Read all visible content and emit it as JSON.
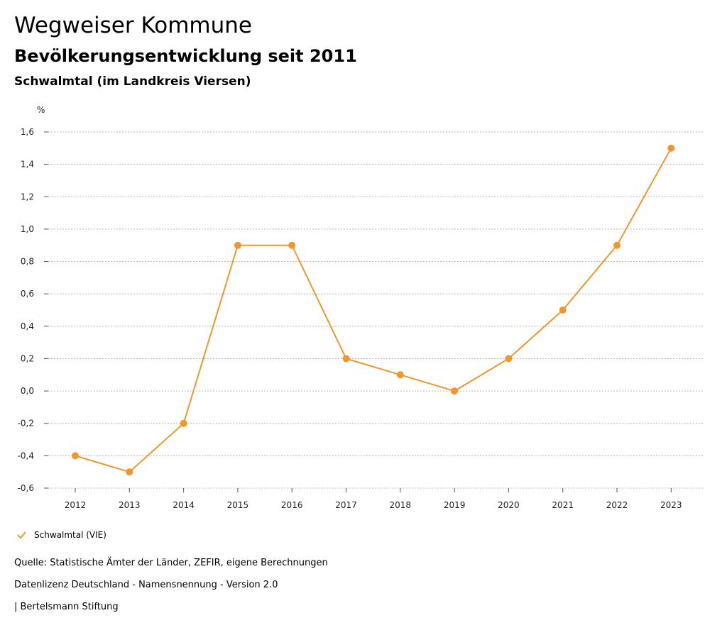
{
  "header": {
    "title": "Wegweiser Kommune",
    "subtitle": "Bevölkerungsentwicklung seit 2011",
    "region": "Schwalmtal (im Landkreis Viersen)"
  },
  "colors": {
    "accent": "#f0972f",
    "grid": "#b9b9b9",
    "axis": "#555555"
  },
  "chart_data": {
    "type": "line",
    "title": "Bevölkerungsentwicklung seit 2011",
    "ylabel": "%",
    "xlabel": "",
    "x": [
      "2012",
      "2013",
      "2014",
      "2015",
      "2016",
      "2017",
      "2018",
      "2019",
      "2020",
      "2021",
      "2022",
      "2023"
    ],
    "series": [
      {
        "name": "Schwalmtal (VIE)",
        "values": [
          -0.4,
          -0.5,
          -0.2,
          0.9,
          0.9,
          0.2,
          0.1,
          0.0,
          0.2,
          0.5,
          0.9,
          1.5
        ]
      }
    ],
    "yticks": [
      1.6,
      1.4,
      1.2,
      1.0,
      0.8,
      0.6,
      0.4,
      0.2,
      0.0,
      -0.2,
      -0.4,
      -0.6
    ],
    "ytick_labels": [
      "1,6",
      "1,4",
      "1,2",
      "1,0",
      "0,8",
      "0,6",
      "0,4",
      "0,2",
      "0,0",
      "-0,2",
      "-0,4",
      "-0,6"
    ],
    "ylim": [
      -0.6,
      1.6
    ],
    "grid": true,
    "legend": "bottom-left"
  },
  "legend": {
    "label": "Schwalmtal (VIE)"
  },
  "footer": {
    "source": "Quelle: Statistische Ämter der Länder, ZEFIR, eigene Berechnungen",
    "license": "Datenlizenz Deutschland - Namensnennung - Version 2.0",
    "publisher": "| Bertelsmann Stiftung"
  }
}
